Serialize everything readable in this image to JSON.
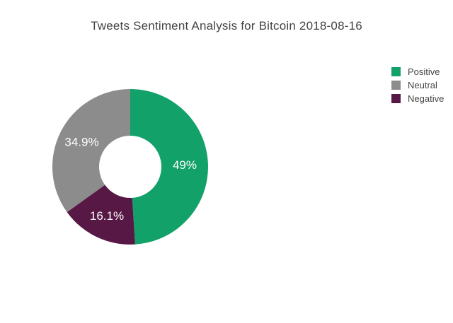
{
  "chart_data": {
    "type": "pie",
    "subtype": "donut",
    "title": "Tweets Sentiment Analysis for Bitcoin 2018-08-16",
    "title_color": "#444444",
    "labels": [
      "Positive",
      "Neutral",
      "Negative"
    ],
    "values": [
      49,
      34.9,
      16.1
    ],
    "unit": "percent",
    "colors": {
      "Positive": "#12A169",
      "Neutral": "#8C8C8C",
      "Negative": "#581845"
    },
    "slice_labels": {
      "Positive": "49%",
      "Neutral": "34.9%",
      "Negative": "16.1%"
    },
    "slice_label_color": "#FFFFFF",
    "slice_order_clockwise": [
      "Positive",
      "Negative",
      "Neutral"
    ],
    "start_angle": "12-o-clock",
    "hole_ratio": 0.4,
    "background": "#FFFFFF",
    "legend": {
      "position": "right",
      "entries": [
        "Positive",
        "Neutral",
        "Negative"
      ]
    }
  }
}
